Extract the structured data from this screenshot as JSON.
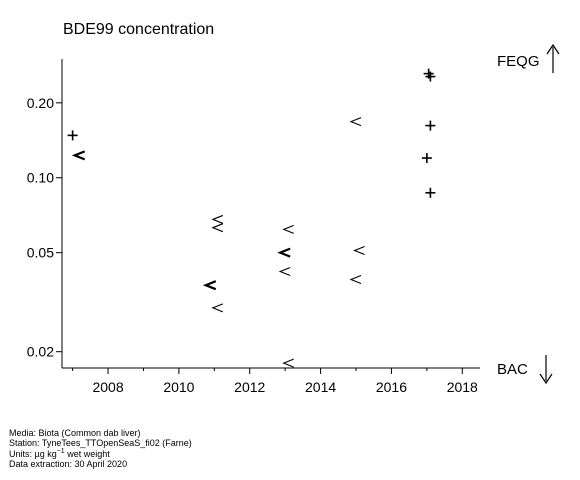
{
  "chart_data": {
    "type": "scatter",
    "title": "BDE99 concentration",
    "xlabel": "",
    "ylabel": "",
    "y_scale": "log",
    "xlim": [
      2006.7,
      2018.5
    ],
    "ylim": [
      0.0172,
      0.3
    ],
    "x_ticks": [
      2008,
      2010,
      2012,
      2014,
      2016,
      2018
    ],
    "x_tick_labels": [
      "2008",
      "2010",
      "2012",
      "2014",
      "2016",
      "2018"
    ],
    "x_minor_ticks": [
      2007,
      2009,
      2011,
      2013,
      2015,
      2017
    ],
    "y_ticks": [
      0.02,
      0.05,
      0.1,
      0.2
    ],
    "y_tick_labels": [
      "0.02",
      "0.05",
      "0.10",
      "0.20"
    ],
    "grid": false,
    "reference_lines": [
      {
        "label": "FEQG",
        "direction": "up",
        "arrow": "↑"
      },
      {
        "label": "BAC",
        "direction": "down",
        "arrow": "↓"
      }
    ],
    "series": [
      {
        "marker": "+",
        "points": [
          {
            "x": 2007.0,
            "y": 0.148
          },
          {
            "x": 2017.05,
            "y": 0.262
          },
          {
            "x": 2017.1,
            "y": 0.255
          },
          {
            "x": 2017.1,
            "y": 0.162
          },
          {
            "x": 2017.0,
            "y": 0.12
          },
          {
            "x": 2017.1,
            "y": 0.087
          }
        ]
      },
      {
        "marker": "<",
        "points": [
          {
            "x": 2007.2,
            "y": 0.123,
            "bold": true
          },
          {
            "x": 2011.1,
            "y": 0.068
          },
          {
            "x": 2011.1,
            "y": 0.063
          },
          {
            "x": 2010.9,
            "y": 0.037,
            "bold": true
          },
          {
            "x": 2011.1,
            "y": 0.03
          },
          {
            "x": 2013.1,
            "y": 0.062
          },
          {
            "x": 2013.0,
            "y": 0.05,
            "bold": true
          },
          {
            "x": 2013.0,
            "y": 0.042
          },
          {
            "x": 2013.1,
            "y": 0.018
          },
          {
            "x": 2015.0,
            "y": 0.168
          },
          {
            "x": 2015.1,
            "y": 0.051
          },
          {
            "x": 2015.0,
            "y": 0.039
          }
        ]
      }
    ]
  },
  "footer": {
    "media": "Media: Biota (Common dab liver)",
    "station": "Station: TyneTees_TTOpenSeaS_fi02 (Farne)",
    "units_prefix": "Units:  µg kg",
    "units_sup": "−1",
    "units_suffix": " wet weight",
    "extraction": "Data extraction: 30 April 2020"
  }
}
